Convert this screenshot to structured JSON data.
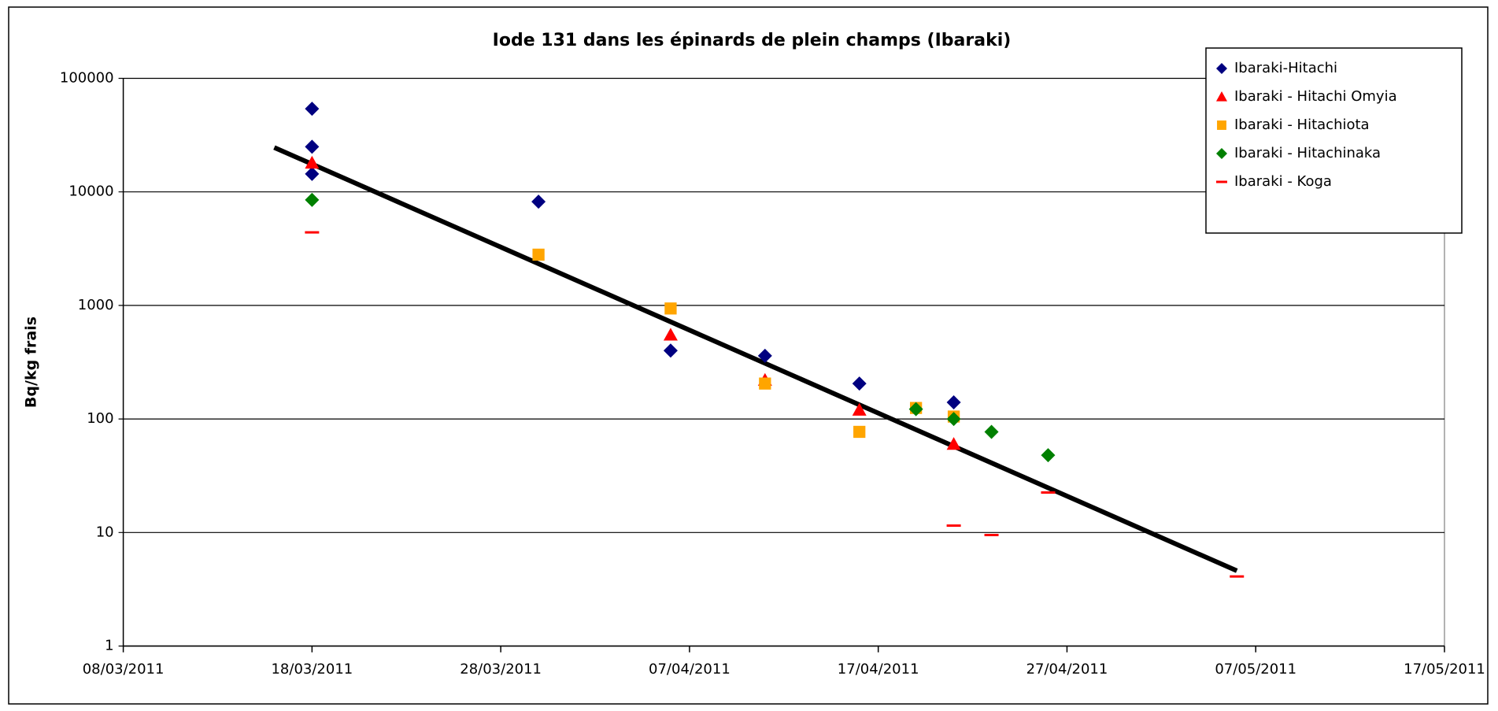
{
  "chart_data": {
    "type": "scatter",
    "title": "Iode 131 dans les épinards de plein champs (Ibaraki)",
    "ylabel": "Bq/kg frais",
    "log_y": true,
    "grid": true,
    "legend": "top-right",
    "xlim": [
      "2011-03-08",
      "2011-05-17"
    ],
    "xticks": [
      {
        "value": "2011-03-08",
        "label": "08/03/2011"
      },
      {
        "value": "2011-03-18",
        "label": "18/03/2011"
      },
      {
        "value": "2011-03-28",
        "label": "28/03/2011"
      },
      {
        "value": "2011-04-07",
        "label": "07/04/2011"
      },
      {
        "value": "2011-04-17",
        "label": "17/04/2011"
      },
      {
        "value": "2011-04-27",
        "label": "27/04/2011"
      },
      {
        "value": "2011-05-07",
        "label": "07/05/2011"
      },
      {
        "value": "2011-05-17",
        "label": "17/05/2011"
      }
    ],
    "ylim": [
      1,
      100000
    ],
    "yticks": [
      1,
      10,
      100,
      1000,
      10000,
      100000
    ],
    "series": [
      {
        "name": "Ibaraki-Hitachi",
        "color": "#000080",
        "marker": "diamond",
        "x": [
          "2011-03-18",
          "2011-03-18",
          "2011-03-18",
          "2011-03-30",
          "2011-04-06",
          "2011-04-11",
          "2011-04-16",
          "2011-04-21"
        ],
        "values": [
          54000,
          25000,
          14400,
          8200,
          400,
          360,
          205,
          140
        ]
      },
      {
        "name": "Ibaraki - Hitachi Omyia",
        "color": "#ff0000",
        "marker": "triangle",
        "x": [
          "2011-03-18",
          "2011-04-06",
          "2011-04-11",
          "2011-04-16",
          "2011-04-21"
        ],
        "values": [
          18000,
          550,
          220,
          120,
          60
        ]
      },
      {
        "name": "Ibaraki - Hitachiota",
        "color": "#ffa500",
        "marker": "square",
        "x": [
          "2011-03-30",
          "2011-04-06",
          "2011-04-11",
          "2011-04-16",
          "2011-04-19",
          "2011-04-21"
        ],
        "values": [
          2800,
          940,
          205,
          77,
          125,
          105
        ]
      },
      {
        "name": "Ibaraki - Hitachinaka",
        "color": "#008000",
        "marker": "diamond",
        "x": [
          "2011-03-18",
          "2011-04-19",
          "2011-04-21",
          "2011-04-23",
          "2011-04-26"
        ],
        "values": [
          8500,
          122,
          100,
          77,
          48
        ]
      },
      {
        "name": "Ibaraki - Koga",
        "color": "#ff0000",
        "marker": "dash",
        "x": [
          "2011-03-18",
          "2011-04-21",
          "2011-04-23",
          "2011-04-26",
          "2011-05-06"
        ],
        "values": [
          4400,
          11.5,
          9.5,
          22.5,
          4.1
        ]
      }
    ],
    "trendline": {
      "color": "#000000",
      "x": [
        "2011-03-16",
        "2011-05-06"
      ],
      "values": [
        24600,
        4.6
      ]
    }
  }
}
